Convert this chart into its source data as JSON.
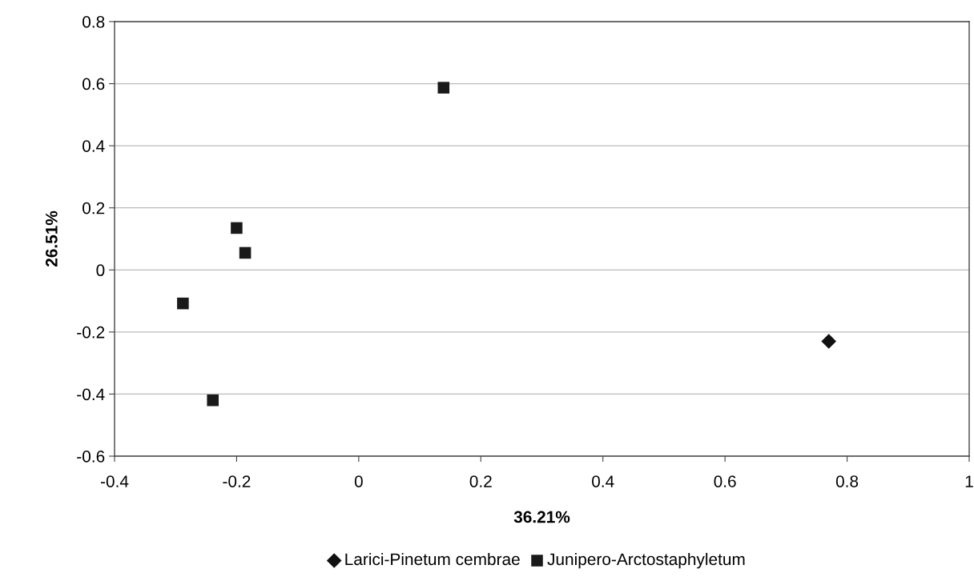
{
  "chart_data": {
    "type": "scatter",
    "xlabel": "36.21%",
    "ylabel": "26.51%",
    "xlim": [
      -0.4,
      1
    ],
    "xticks": [
      -0.4,
      -0.2,
      0,
      0.2,
      0.4,
      0.6,
      0.8,
      1
    ],
    "ylim": [
      -0.6,
      0.8
    ],
    "yticks": [
      -0.6,
      -0.4,
      -0.2,
      0,
      0.2,
      0.4,
      0.6,
      0.8
    ],
    "grid": "y",
    "legend": "bottom",
    "series": [
      {
        "name": "Larici-Pinetum cembrae",
        "color": "#111111",
        "marker": "diamond",
        "x": [
          0.77
        ],
        "values": [
          -0.23
        ]
      },
      {
        "name": "Junipero-Arctostaphyletum",
        "color": "#1a1a1a",
        "marker": "square",
        "x": [
          -0.288,
          -0.239,
          -0.2,
          -0.186,
          0.139
        ],
        "values": [
          -0.108,
          -0.42,
          0.135,
          0.055,
          0.587
        ]
      }
    ]
  }
}
